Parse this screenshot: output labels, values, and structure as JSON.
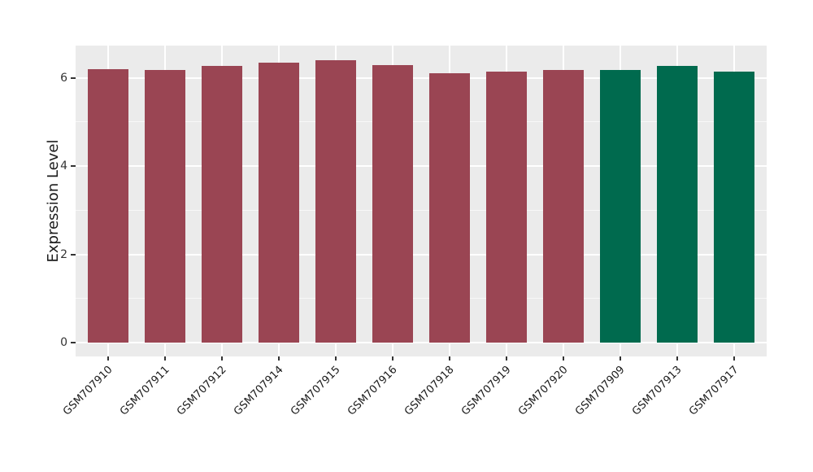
{
  "chart_data": {
    "type": "bar",
    "title": "",
    "xlabel": "",
    "ylabel": "Expression Level",
    "categories": [
      "GSM707910",
      "GSM707911",
      "GSM707912",
      "GSM707914",
      "GSM707915",
      "GSM707916",
      "GSM707918",
      "GSM707919",
      "GSM707920",
      "GSM707909",
      "GSM707913",
      "GSM707917"
    ],
    "values": [
      6.2,
      6.18,
      6.27,
      6.34,
      6.4,
      6.29,
      6.11,
      6.14,
      6.18,
      6.18,
      6.26,
      6.14
    ],
    "bar_colors": [
      "#9A4553",
      "#9A4553",
      "#9A4553",
      "#9A4553",
      "#9A4553",
      "#9A4553",
      "#9A4553",
      "#9A4553",
      "#9A4553",
      "#006A4E",
      "#006A4E",
      "#006A4E"
    ],
    "color_groups": {
      "maroon": "#9A4553",
      "green": "#006A4E"
    },
    "yticks": [
      0,
      2,
      4,
      6
    ],
    "ytick_minor": [
      1,
      3,
      5
    ],
    "ylim": [
      -0.33,
      6.75
    ],
    "grid": "horizontal major+minor, vertical major at category centers",
    "legend": false,
    "panel_background": "#EBEBEB",
    "grid_color": "#FFFFFF",
    "x_label_rotation_deg": 45
  }
}
